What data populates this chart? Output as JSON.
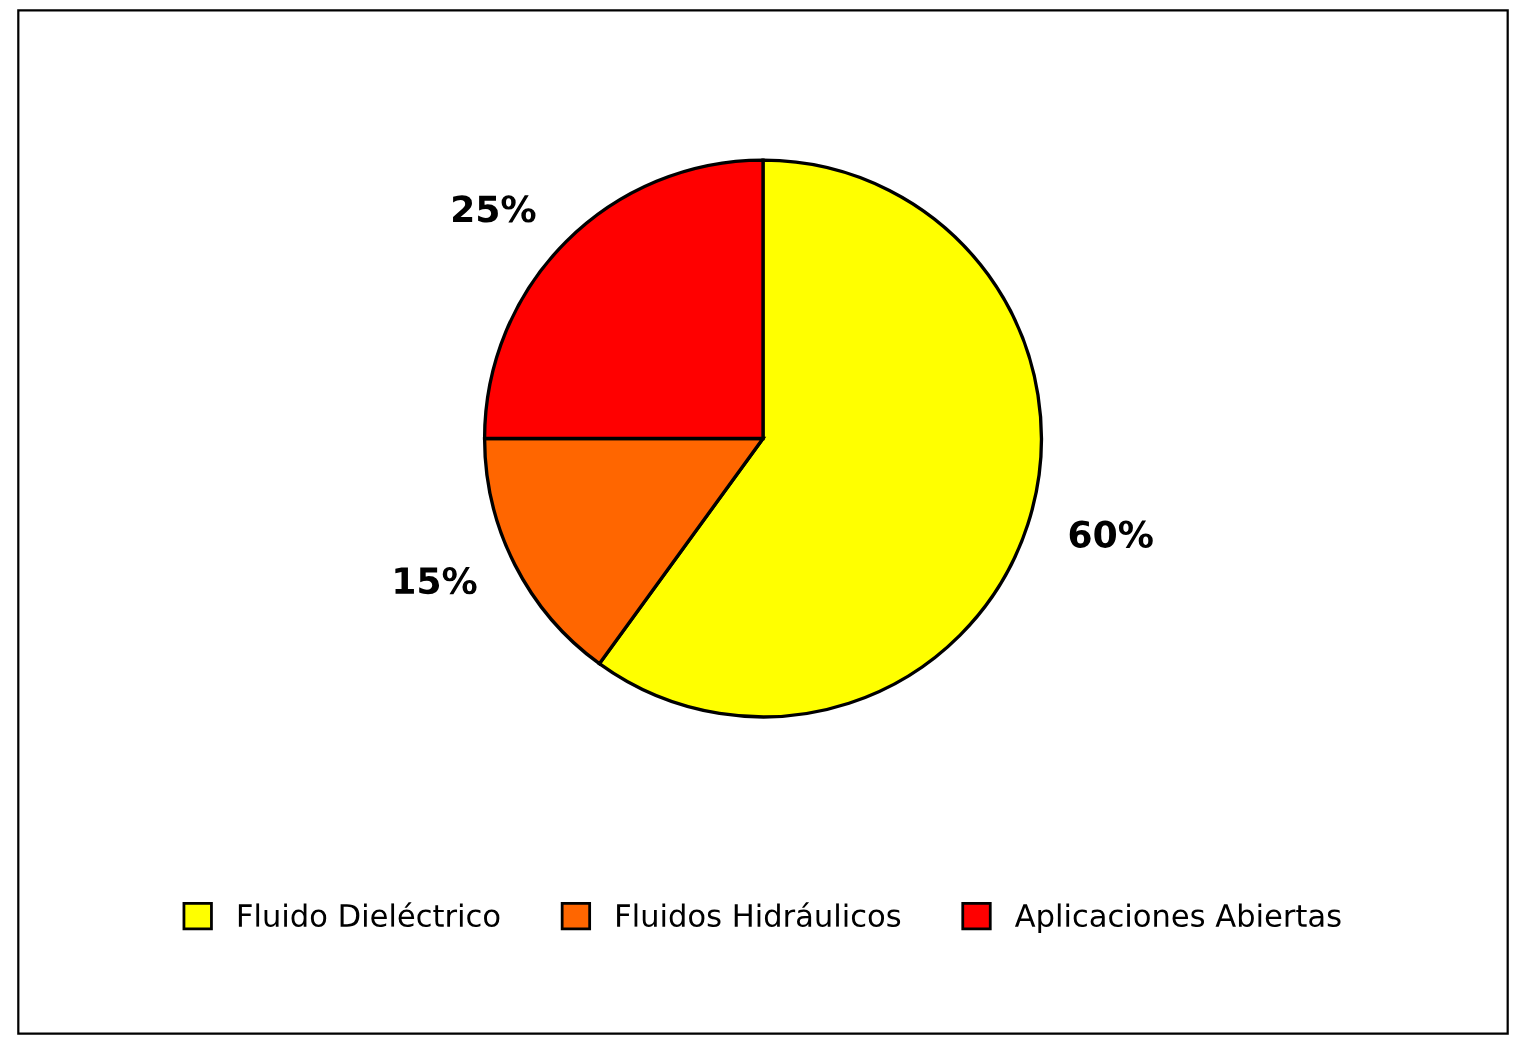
{
  "chart_data": {
    "type": "pie",
    "categories": [
      "Fluido Dieléctrico",
      "Fluidos Hidráulicos",
      "Aplicaciones Abiertas"
    ],
    "values": [
      60,
      15,
      25
    ],
    "colors": [
      "#ffff00",
      "#ff6600",
      "#ff0000"
    ],
    "value_labels": [
      "60%",
      "15%",
      "25%"
    ],
    "legend": "bottom"
  }
}
